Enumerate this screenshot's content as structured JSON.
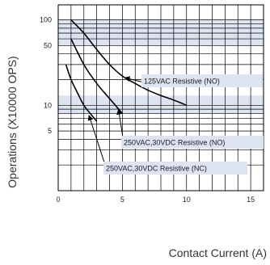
{
  "chart_data": {
    "type": "line",
    "title": "",
    "xlabel": "Contact Current (A)",
    "ylabel": "Operations (X10000 OPS)",
    "x_scale": "linear",
    "y_scale": "log",
    "xlim": [
      0,
      16
    ],
    "ylim": [
      1,
      150
    ],
    "x_ticks": [
      0,
      5,
      10,
      15
    ],
    "y_ticks": [
      5,
      10,
      50,
      100
    ],
    "grid": true,
    "series": [
      {
        "name": "125VAC Resistive (NO)",
        "x": [
          1,
          2,
          3,
          4,
          5,
          6,
          7,
          8,
          9,
          10
        ],
        "y": [
          100,
          70,
          45,
          30,
          22,
          18,
          15,
          13,
          11.5,
          10
        ]
      },
      {
        "name": "250VAC,30VDC Resistive (NO)",
        "x": [
          1,
          2,
          3,
          4,
          5
        ],
        "y": [
          60,
          30,
          18,
          12,
          8
        ]
      },
      {
        "name": "250VAC,30VDC Resistive (NC)",
        "x": [
          0.6,
          1,
          1.5,
          2,
          2.5,
          3
        ],
        "y": [
          30,
          20,
          14,
          10,
          8,
          6.5
        ]
      }
    ],
    "annotations": [
      {
        "text": "125VAC  Resistive (NO)",
        "x": 5.5,
        "y": 22
      },
      {
        "text": "250VAC,30VDC Resistive (NO)",
        "x": 5,
        "y": 7.5
      },
      {
        "text": "250VAC,30VDC Resistive (NC)",
        "x": 2.5,
        "y": 6
      }
    ],
    "colors": {
      "band": "#dde3f1",
      "grid": "#000000",
      "curve": "#000000",
      "label_box": "#dde3f1"
    }
  }
}
